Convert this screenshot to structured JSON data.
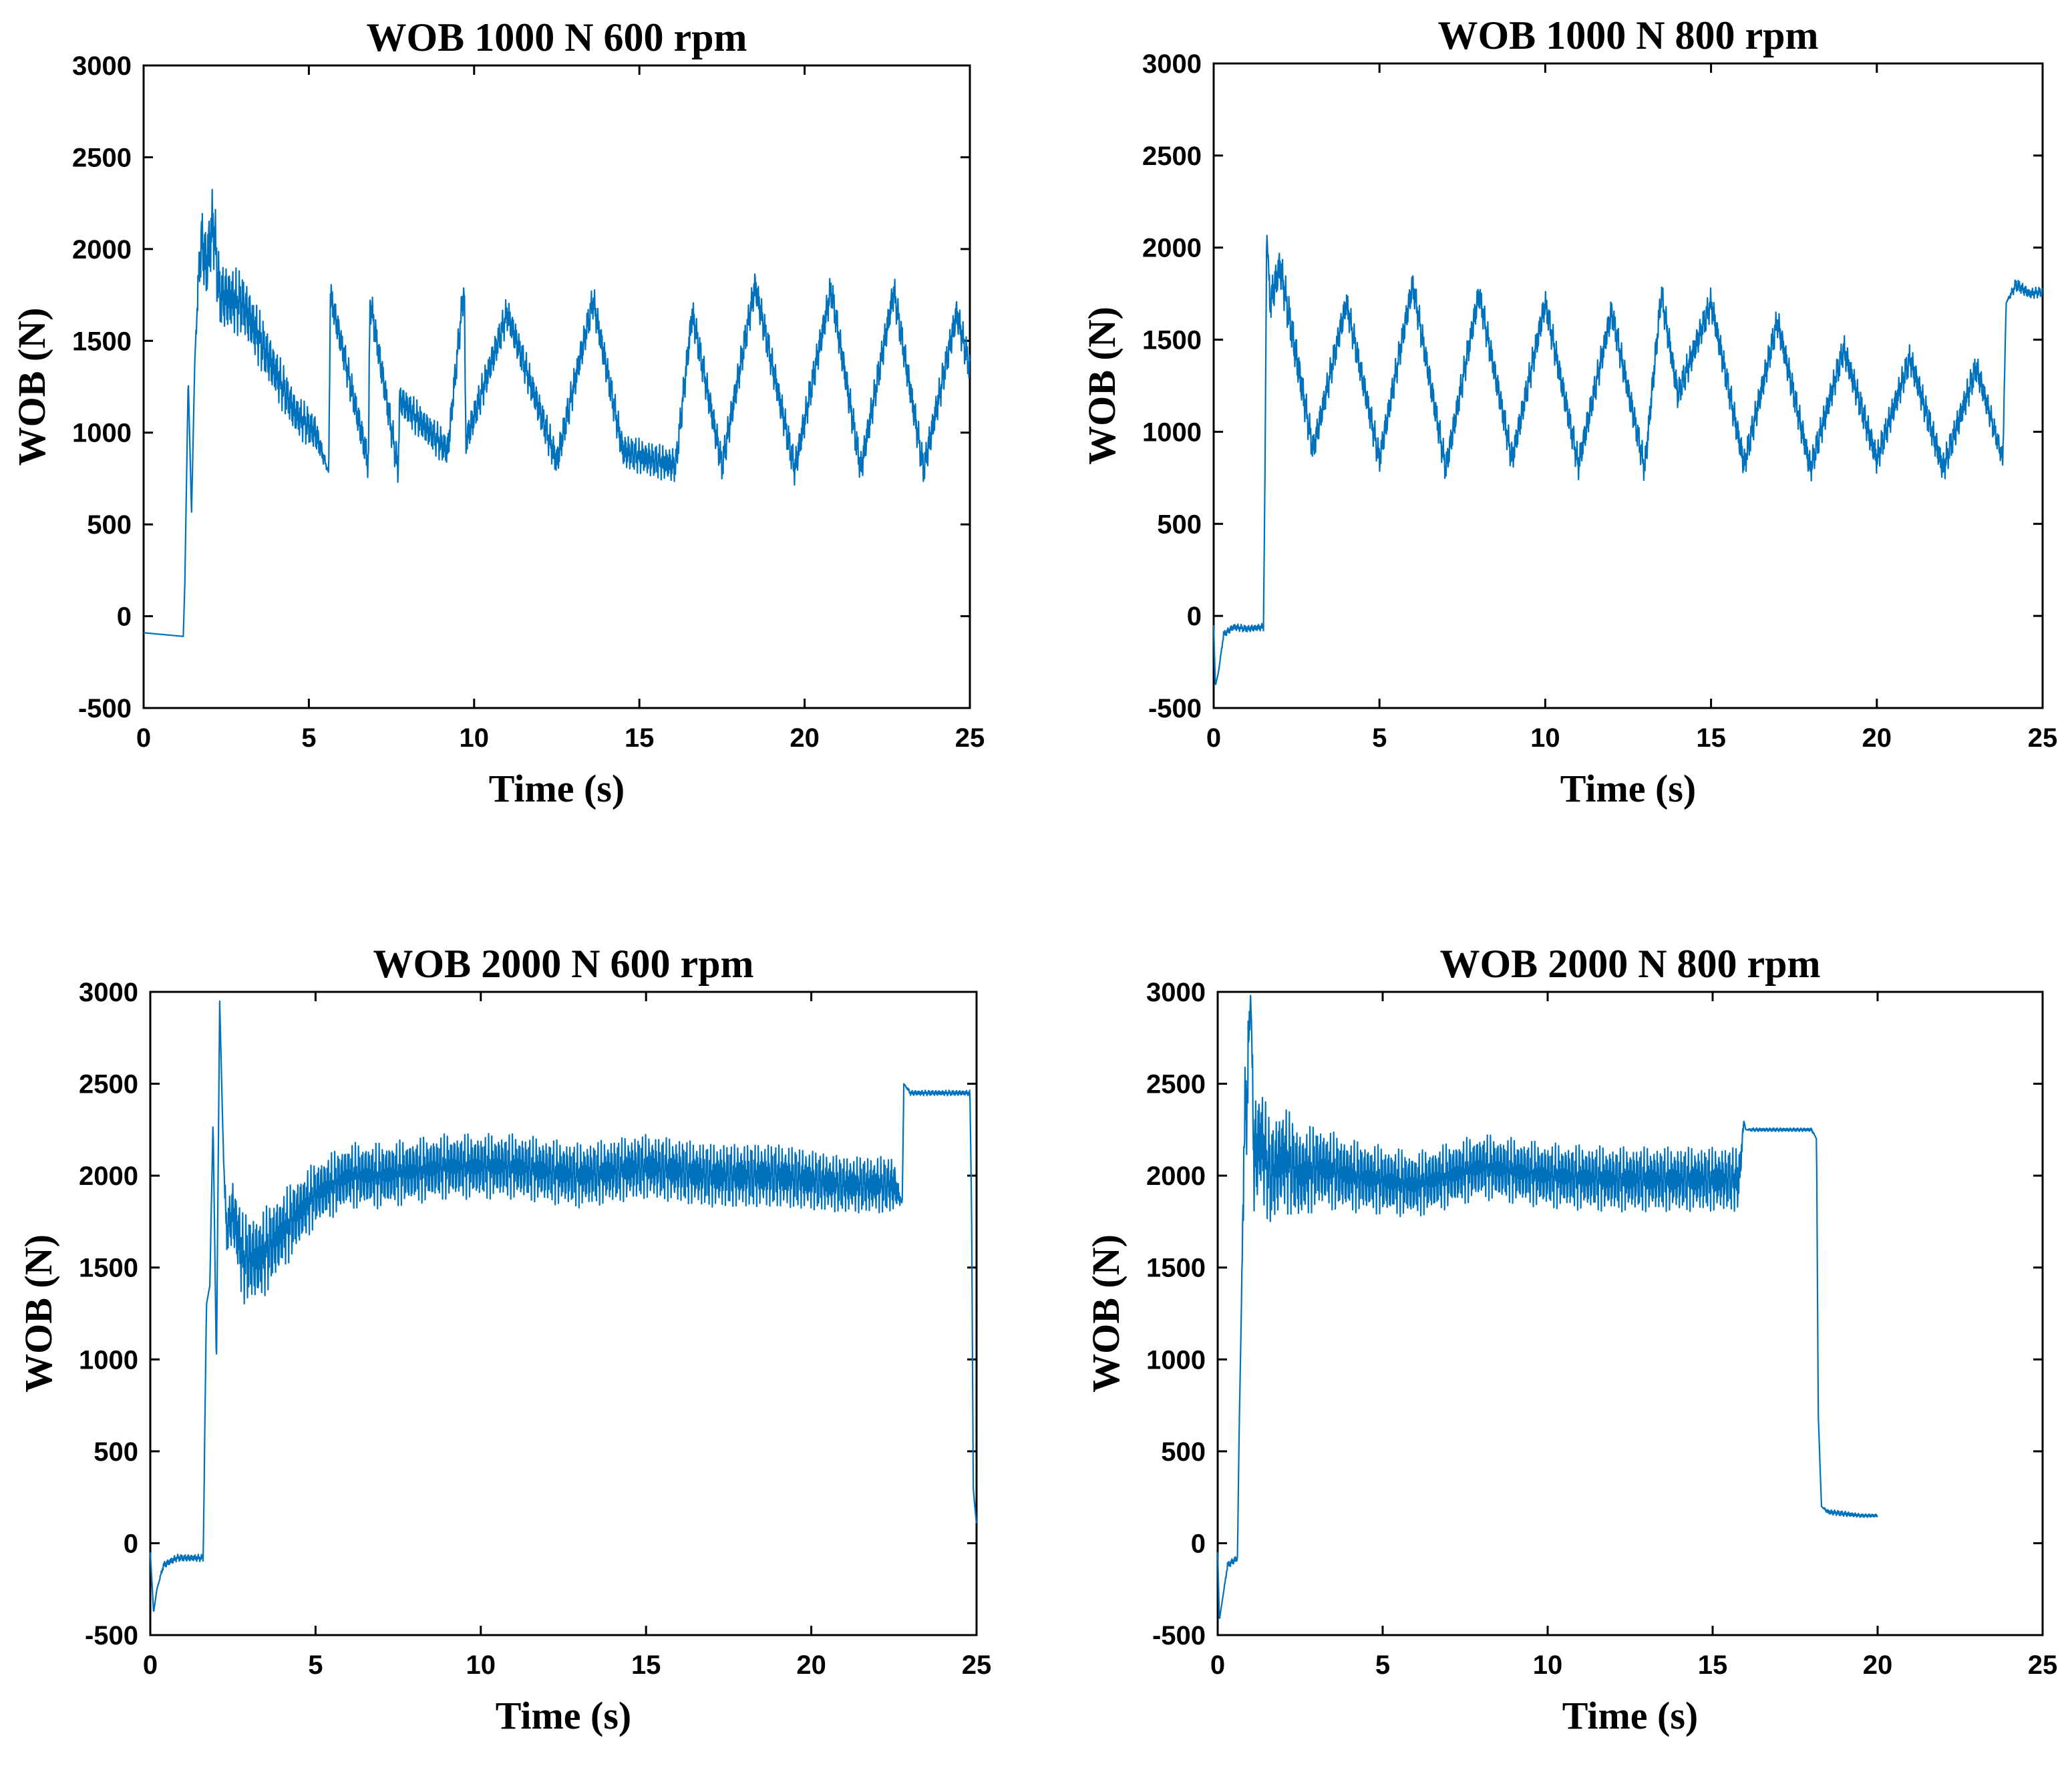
{
  "colors": {
    "series": "#0072BD",
    "axis": "#000000",
    "background": "#ffffff"
  },
  "chart_data": [
    {
      "type": "line",
      "title": "WOB  1000 N     600 rpm",
      "xlabel": "Time (s)",
      "ylabel": "WOB (N)",
      "xlim": [
        0,
        25
      ],
      "ylim": [
        -500,
        3000
      ],
      "xticks": [
        "0",
        "5",
        "10",
        "15",
        "20",
        "25"
      ],
      "yticks": [
        "-500",
        "0",
        "500",
        "1000",
        "1500",
        "2000",
        "2500",
        "3000"
      ],
      "series": [
        {
          "name": "WOB",
          "x": [
            0,
            1.2,
            1.25,
            1.35,
            1.45,
            1.55,
            1.65,
            1.75,
            1.9,
            2.1,
            2.3,
            3.0,
            3.8,
            4.6,
            5.2,
            5.6,
            5.65,
            6.8,
            6.85,
            7.7,
            7.75,
            9.2,
            9.7,
            9.75,
            11.0,
            12.5,
            13.6,
            14.5,
            15.4,
            16.1,
            16.6,
            17.5,
            18.5,
            19.7,
            20.8,
            21.7,
            22.7,
            23.6,
            24.6,
            25.0
          ],
          "values": [
            -90,
            -110,
            200,
            1300,
            550,
            1400,
            1800,
            2050,
            1900,
            2150,
            1750,
            1700,
            1400,
            1100,
            1000,
            780,
            1750,
            830,
            1720,
            800,
            1180,
            900,
            1800,
            950,
            1650,
            840,
            1720,
            900,
            850,
            820,
            1650,
            820,
            1800,
            800,
            1780,
            800,
            1770,
            800,
            1650,
            1350
          ],
          "oscillation": [
            0,
            0,
            0,
            0,
            0,
            0,
            120,
            200,
            220,
            220,
            200,
            180,
            150,
            120,
            110,
            0,
            100,
            100,
            100,
            100,
            100,
            100,
            100,
            100,
            100,
            100,
            100,
            100,
            100,
            100,
            100,
            100,
            100,
            100,
            100,
            100,
            100,
            100,
            100,
            100
          ]
        }
      ]
    },
    {
      "type": "line",
      "title": "WOB  1000 N     800 rpm",
      "xlabel": "Time (s)",
      "ylabel": "WOB (N)",
      "xlim": [
        0,
        25
      ],
      "ylim": [
        -500,
        3000
      ],
      "xticks": [
        "0",
        "5",
        "10",
        "15",
        "20",
        "25"
      ],
      "yticks": [
        "-500",
        "0",
        "500",
        "1000",
        "1500",
        "2000",
        "2500",
        "3000"
      ],
      "series": [
        {
          "name": "WOB",
          "x": [
            0,
            0.05,
            0.15,
            0.3,
            0.6,
            1.0,
            1.5,
            1.55,
            1.6,
            1.7,
            2.0,
            2.5,
            3.0,
            4.0,
            5.0,
            6.0,
            7.0,
            8.0,
            9.0,
            10.0,
            11.0,
            12.0,
            13.0,
            13.5,
            14.0,
            15.0,
            16.0,
            17.0,
            18.0,
            19.0,
            20.0,
            21.0,
            22.0,
            23.0,
            23.8,
            23.9,
            24.2,
            24.6,
            25.0
          ],
          "values": [
            -50,
            -380,
            -300,
            -100,
            -60,
            -70,
            -60,
            800,
            2100,
            1700,
            1900,
            1400,
            900,
            1700,
            850,
            1800,
            800,
            1750,
            850,
            1700,
            820,
            1650,
            800,
            1750,
            1200,
            1700,
            820,
            1600,
            800,
            1450,
            850,
            1400,
            800,
            1350,
            850,
            1700,
            1800,
            1750,
            1760
          ],
          "oscillation": [
            0,
            0,
            0,
            20,
            20,
            20,
            20,
            0,
            0,
            120,
            120,
            120,
            90,
            90,
            90,
            90,
            90,
            90,
            90,
            90,
            90,
            90,
            90,
            90,
            90,
            90,
            90,
            90,
            90,
            90,
            90,
            90,
            90,
            90,
            60,
            0,
            40,
            30,
            30
          ]
        }
      ]
    },
    {
      "type": "line",
      "title": "WOB  2000 N     600 rpm",
      "xlabel": "Time (s)",
      "ylabel": "WOB (N)",
      "xlim": [
        0,
        25
      ],
      "ylim": [
        -500,
        3000
      ],
      "xticks": [
        "0",
        "5",
        "10",
        "15",
        "20",
        "25"
      ],
      "yticks": [
        "-500",
        "0",
        "500",
        "1000",
        "1500",
        "2000",
        "2500",
        "3000"
      ],
      "series": [
        {
          "name": "WOB",
          "x": [
            0,
            0.1,
            0.2,
            0.4,
            0.8,
            1.2,
            1.6,
            1.7,
            1.8,
            1.9,
            2.0,
            2.1,
            2.2,
            2.3,
            2.5,
            2.8,
            3.3,
            4.0,
            5.0,
            6.0,
            7.0,
            9.0,
            11.0,
            13.0,
            15.0,
            17.0,
            19.0,
            21.0,
            22.5,
            22.75,
            22.8,
            23.0,
            24.0,
            24.8,
            24.85,
            24.9,
            25.0
          ],
          "values": [
            -50,
            -380,
            -250,
            -120,
            -80,
            -80,
            -80,
            1300,
            1400,
            2300,
            950,
            2950,
            2200,
            1700,
            1800,
            1550,
            1550,
            1700,
            1900,
            2000,
            2000,
            2050,
            2050,
            2000,
            2050,
            2000,
            2000,
            1950,
            1950,
            1850,
            2500,
            2450,
            2450,
            2450,
            1800,
            300,
            100
          ],
          "oscillation": [
            0,
            0,
            0,
            20,
            20,
            20,
            20,
            0,
            0,
            0,
            0,
            0,
            0,
            150,
            200,
            250,
            250,
            220,
            180,
            180,
            180,
            180,
            180,
            180,
            180,
            180,
            180,
            160,
            160,
            0,
            0,
            15,
            15,
            15,
            0,
            0,
            0
          ]
        }
      ]
    },
    {
      "type": "line",
      "title": "WOB  2000 N     800 rpm",
      "xlabel": "Time (s)",
      "ylabel": "WOB (N)",
      "xlim": [
        0,
        25
      ],
      "ylim": [
        -500,
        3000
      ],
      "xticks": [
        "0",
        "5",
        "10",
        "15",
        "20",
        "25"
      ],
      "yticks": [
        "-500",
        "0",
        "500",
        "1000",
        "1500",
        "2000",
        "2500",
        "3000"
      ],
      "series": [
        {
          "name": "WOB",
          "x": [
            0,
            0.05,
            0.15,
            0.3,
            0.6,
            0.65,
            0.72,
            0.8,
            0.9,
            1.0,
            1.1,
            1.3,
            1.6,
            2.0,
            2.5,
            3.0,
            4.0,
            6.0,
            8.0,
            10.0,
            12.0,
            14.0,
            15.8,
            15.95,
            16.0,
            16.2,
            17.0,
            18.0,
            18.15,
            18.2,
            18.3,
            18.5,
            19.0,
            19.5,
            20.0
          ],
          "values": [
            -50,
            -420,
            -300,
            -120,
            -80,
            600,
            1300,
            2200,
            2500,
            3000,
            2100,
            2200,
            2000,
            2100,
            2000,
            2050,
            2000,
            1950,
            2050,
            2000,
            1980,
            1980,
            1980,
            2300,
            2250,
            2250,
            2250,
            2250,
            2200,
            700,
            200,
            170,
            160,
            150,
            150
          ],
          "oscillation": [
            0,
            0,
            0,
            20,
            20,
            0,
            0,
            300,
            350,
            0,
            350,
            320,
            300,
            300,
            260,
            230,
            200,
            180,
            180,
            180,
            180,
            180,
            180,
            0,
            0,
            10,
            10,
            10,
            0,
            0,
            0,
            15,
            15,
            10,
            10
          ]
        }
      ]
    }
  ]
}
